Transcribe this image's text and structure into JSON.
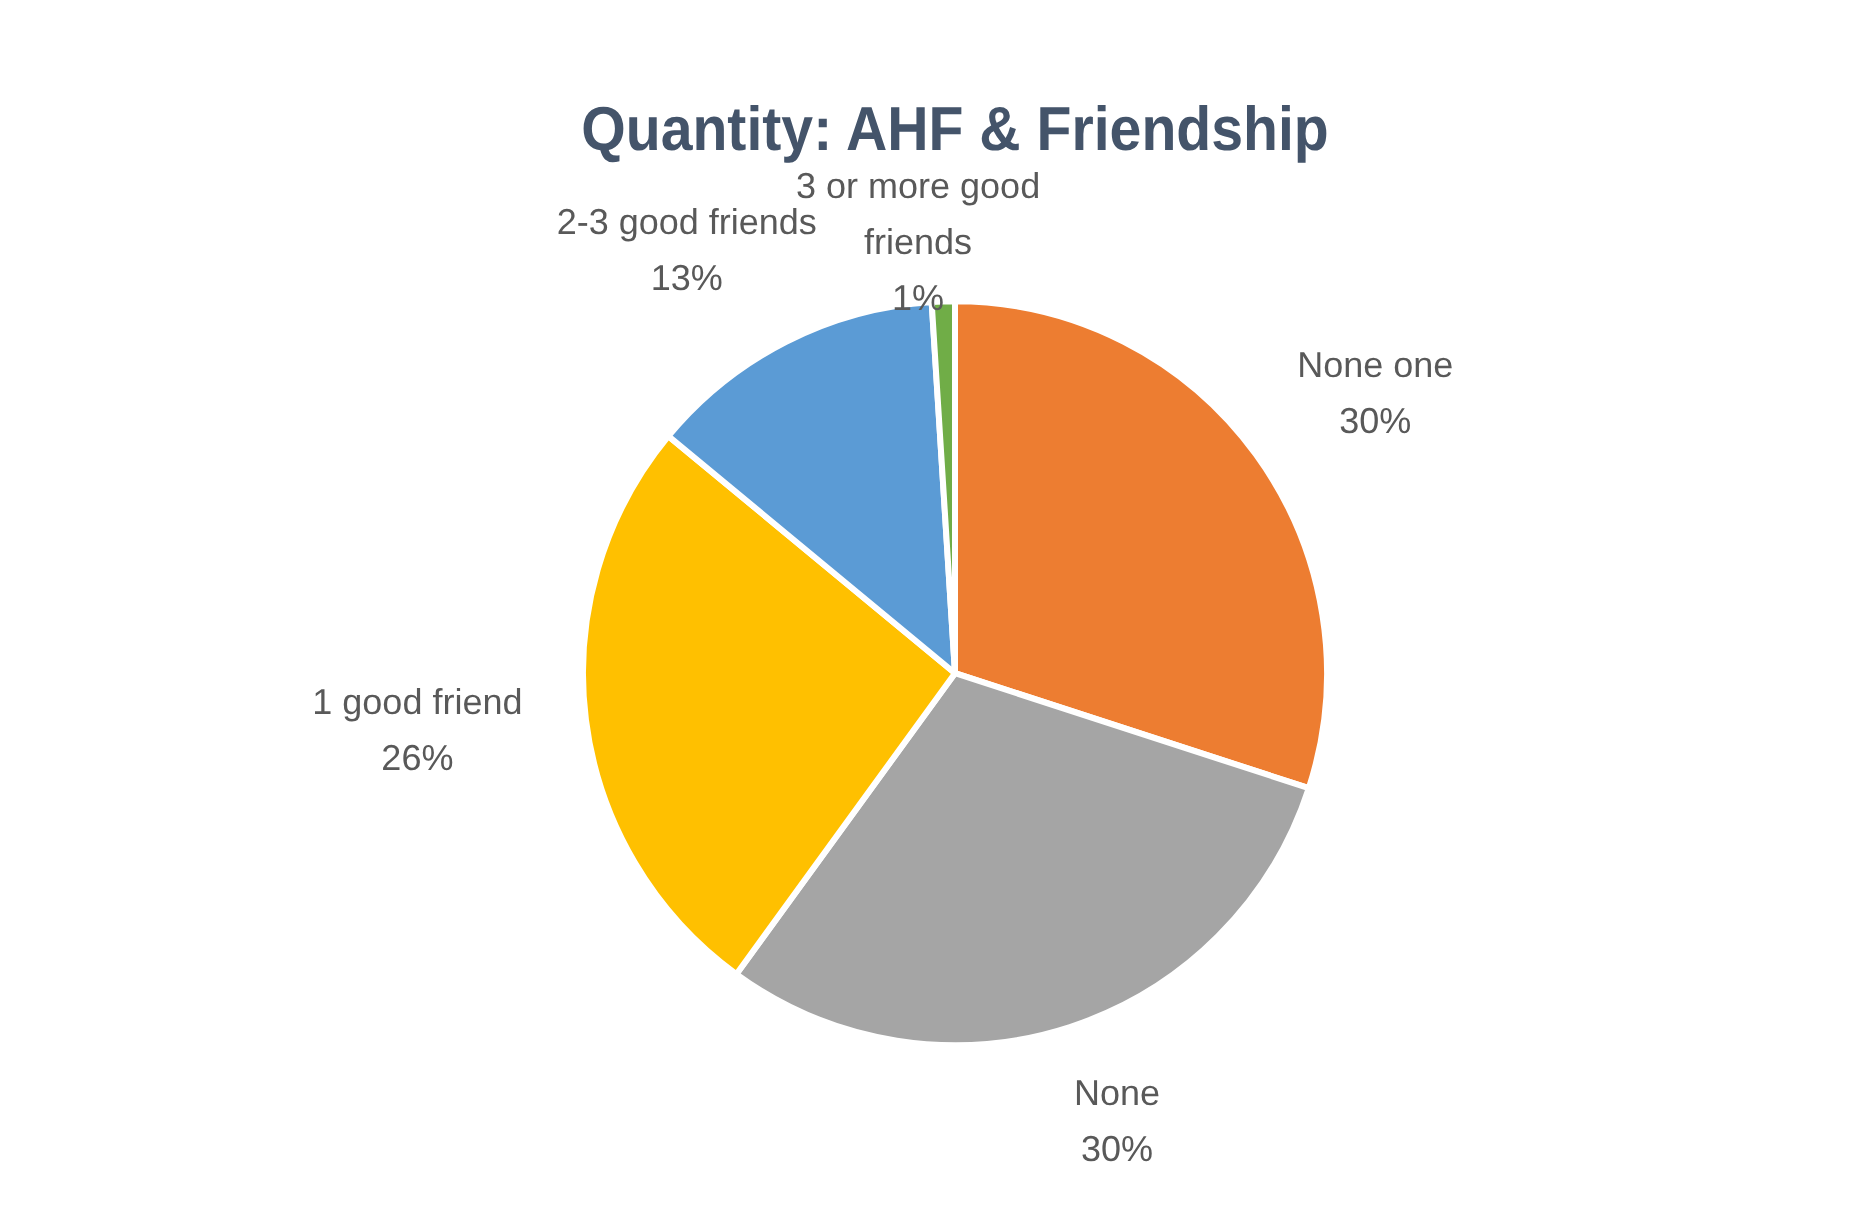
{
  "chart_data": {
    "type": "pie",
    "title": "Quantity: AHF & Friendship",
    "categories": [
      "None one",
      "None",
      "1 good friend",
      "2-3 good friends",
      "3 or more good friends"
    ],
    "values": [
      30,
      30,
      26,
      13,
      1
    ],
    "value_labels": [
      "30%",
      "30%",
      "26%",
      "13%",
      "1%"
    ],
    "colors": [
      "#ed7d31",
      "#a5a5a5",
      "#ffc000",
      "#5b9bd5",
      "#70ad47"
    ],
    "legend": false
  }
}
